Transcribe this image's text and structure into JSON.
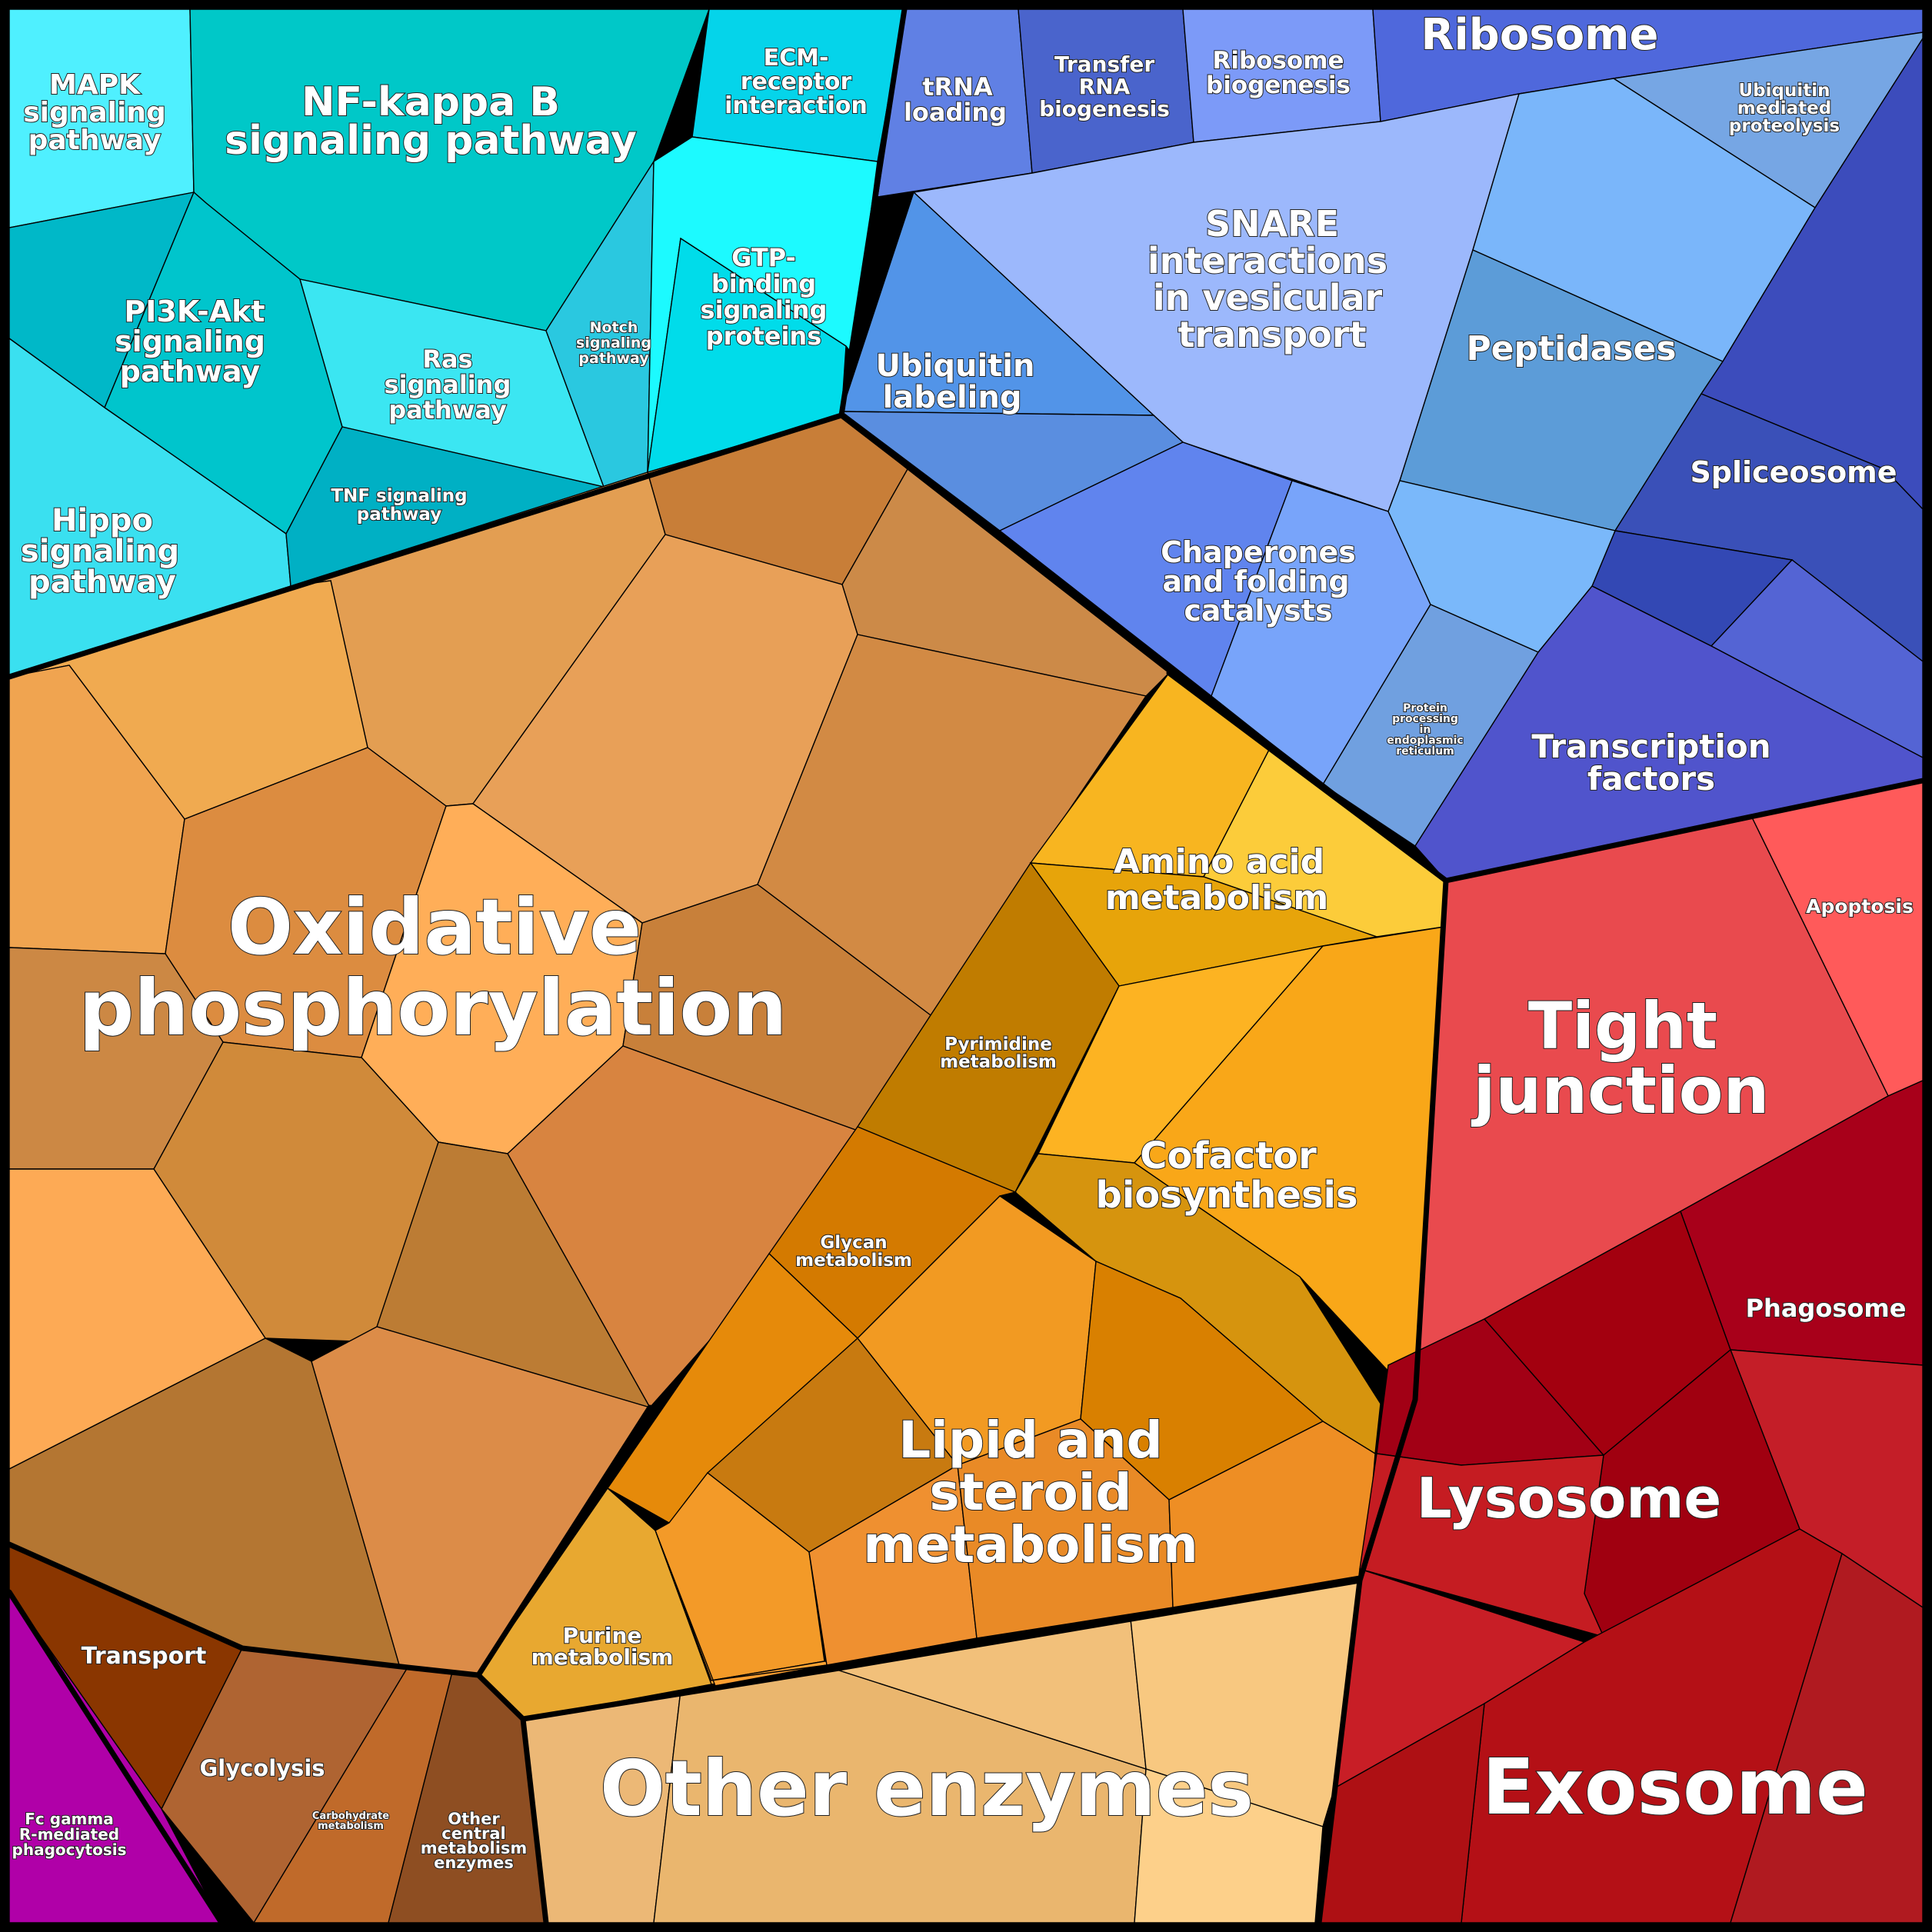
{
  "labels": {
    "mapk": [
      "MAPK",
      "signaling",
      "pathway"
    ],
    "nfkb": [
      "NF-kappa B",
      "signaling pathway"
    ],
    "ecm": [
      "ECM-",
      "receptor",
      "interaction"
    ],
    "pi3k": [
      "PI3K-Akt",
      "signaling",
      "pathway"
    ],
    "ras": [
      "Ras",
      "signaling",
      "pathway"
    ],
    "notch": [
      "Notch",
      "signaling",
      "pathway"
    ],
    "gtp": [
      "GTP-",
      "binding",
      "signaling",
      "proteins"
    ],
    "hippo": [
      "Hippo",
      "signaling",
      "pathway"
    ],
    "tnf": [
      "TNF signaling",
      "pathway"
    ],
    "trna": [
      "tRNA",
      "loading"
    ],
    "trnabio": [
      "Transfer",
      "RNA",
      "biogenesis"
    ],
    "ribobio": [
      "Ribosome",
      "biogenesis"
    ],
    "ribosome": [
      "Ribosome"
    ],
    "ubiqprot": [
      "Ubiquitin",
      "mediated",
      "proteolysis"
    ],
    "snare": [
      "SNARE",
      "interactions",
      "in vesicular",
      "transport"
    ],
    "peptidases": [
      "Peptidases"
    ],
    "ubiqlab": [
      "Ubiquitin",
      "labeling"
    ],
    "spliceosome": [
      "Spliceosome"
    ],
    "chaperones": [
      "Chaperones",
      "and folding",
      "catalysts"
    ],
    "protproc": [
      "Protein",
      "processing",
      "in",
      "endoplasmic",
      "reticulum"
    ],
    "tf": [
      "Transcription",
      "factors"
    ],
    "oxphos": [
      "Oxidative",
      "phosphorylation"
    ],
    "aamet": [
      "Amino acid",
      "metabolism"
    ],
    "pyrim": [
      "Pyrimidine",
      "metabolism"
    ],
    "cofactor": [
      "Cofactor",
      "biosynthesis"
    ],
    "glycan": [
      "Glycan",
      "metabolism"
    ],
    "lipid": [
      "Lipid and",
      "steroid",
      "metabolism"
    ],
    "purine": [
      "Purine",
      "metabolism"
    ],
    "apoptosis": [
      "Apoptosis"
    ],
    "tight": [
      "Tight",
      "junction"
    ],
    "phagosome": [
      "Phagosome"
    ],
    "lysosome": [
      "Lysosome"
    ],
    "exosome": [
      "Exosome"
    ],
    "transport": [
      "Transport"
    ],
    "glycolysis": [
      "Glycolysis"
    ],
    "carbo": [
      "Carbohydrate",
      "metabolism"
    ],
    "otherctr": [
      "Other",
      "central",
      "metabolism",
      "enzymes"
    ],
    "otherenz": [
      "Other enzymes"
    ],
    "fcgamma": [
      "Fc gamma",
      "R-mediated",
      "phagocytosis"
    ]
  },
  "colors": {
    "signaling": "#2bd0da",
    "genetic_information": "#5b78e0",
    "energy_metabolism": "#d98c3c",
    "metabolism": "#f0a030",
    "cellular_processes": "#d8202a",
    "other_enzymes": "#f2c27c",
    "central_metabolism": "#a0522d",
    "fc_gamma": "#b000a8"
  }
}
